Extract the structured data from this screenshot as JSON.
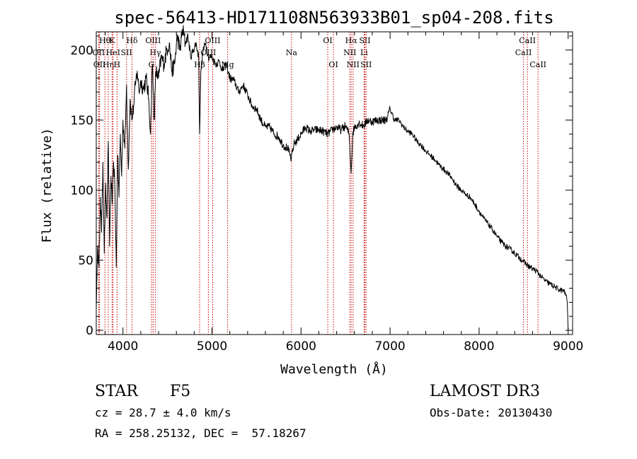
{
  "chart_data": {
    "type": "line",
    "title": "spec-56413-HD171108N563933B01_sp04-208.fits",
    "xlabel": "Wavelength (Å)",
    "ylabel": "Flux (relative)",
    "xlim": [
      3700,
      9050
    ],
    "ylim": [
      -3,
      213
    ],
    "x_ticks": [
      4000,
      5000,
      6000,
      7000,
      8000,
      9000
    ],
    "y_ticks": [
      0,
      50,
      100,
      150,
      200
    ],
    "grid": false,
    "series": [
      {
        "name": "flux",
        "x": [
          3700,
          3715,
          3730,
          3745,
          3760,
          3775,
          3790,
          3805,
          3820,
          3835,
          3850,
          3865,
          3880,
          3895,
          3910,
          3925,
          3940,
          3955,
          3970,
          3985,
          4000,
          4020,
          4040,
          4060,
          4080,
          4100,
          4120,
          4140,
          4160,
          4180,
          4200,
          4230,
          4260,
          4290,
          4310,
          4330,
          4350,
          4370,
          4400,
          4430,
          4460,
          4490,
          4520,
          4550,
          4580,
          4610,
          4640,
          4670,
          4700,
          4730,
          4760,
          4790,
          4820,
          4850,
          4861,
          4875,
          4900,
          4930,
          4960,
          5000,
          5040,
          5080,
          5120,
          5160,
          5200,
          5250,
          5300,
          5350,
          5400,
          5450,
          5500,
          5550,
          5600,
          5650,
          5700,
          5750,
          5800,
          5850,
          5890,
          5920,
          5950,
          6000,
          6050,
          6100,
          6150,
          6200,
          6250,
          6300,
          6350,
          6400,
          6450,
          6500,
          6540,
          6563,
          6580,
          6600,
          6650,
          6700,
          6750,
          6800,
          6850,
          6900,
          6950,
          6970,
          7000,
          7050,
          7100,
          7150,
          7200,
          7250,
          7300,
          7350,
          7400,
          7450,
          7500,
          7550,
          7600,
          7650,
          7700,
          7750,
          7800,
          7850,
          7900,
          7950,
          8000,
          8050,
          8100,
          8150,
          8200,
          8250,
          8300,
          8350,
          8400,
          8450,
          8500,
          8550,
          8600,
          8650,
          8700,
          8750,
          8800,
          8850,
          8900,
          8950,
          8980,
          8990,
          8995,
          9000
        ],
        "y": [
          15,
          60,
          45,
          95,
          70,
          120,
          55,
          105,
          80,
          135,
          60,
          110,
          90,
          120,
          100,
          45,
          125,
          95,
          140,
          110,
          150,
          130,
          175,
          115,
          165,
          150,
          160,
          175,
          185,
          170,
          178,
          172,
          180,
          165,
          140,
          190,
          150,
          185,
          180,
          195,
          190,
          200,
          205,
          185,
          190,
          210,
          200,
          215,
          205,
          210,
          195,
          200,
          205,
          195,
          140,
          185,
          200,
          205,
          195,
          195,
          190,
          192,
          185,
          190,
          180,
          178,
          170,
          175,
          168,
          160,
          158,
          150,
          145,
          145,
          140,
          138,
          132,
          130,
          122,
          133,
          135,
          140,
          145,
          142,
          143,
          143,
          142,
          140,
          143,
          145,
          143,
          146,
          140,
          112,
          140,
          145,
          148,
          146,
          150,
          149,
          150,
          150,
          150,
          152,
          158,
          150,
          150,
          145,
          142,
          140,
          135,
          132,
          128,
          125,
          122,
          118,
          115,
          112,
          108,
          103,
          100,
          97,
          95,
          90,
          85,
          80,
          76,
          72,
          67,
          63,
          60,
          58,
          55,
          52,
          49,
          46,
          44,
          42,
          38,
          35,
          33,
          31,
          29,
          28,
          25,
          20,
          10,
          0
        ]
      }
    ],
    "line_marks": [
      {
        "label": "Hθ",
        "x": 3797,
        "row": 0
      },
      {
        "label": "OII",
        "x": 3727,
        "row": 1
      },
      {
        "label": "OII",
        "x": 3737,
        "row": 2
      },
      {
        "label": "Hη",
        "x": 3835,
        "row": 2
      },
      {
        "label": "K",
        "x": 3878,
        "row": 0
      },
      {
        "label": "HeI",
        "x": 3889,
        "row": 1
      },
      {
        "label": "H",
        "x": 3933,
        "row": 2
      },
      {
        "label": "SII",
        "x": 4040,
        "row": 1
      },
      {
        "label": "Hδ",
        "x": 4101,
        "row": 0
      },
      {
        "label": "OIII",
        "x": 4339,
        "row": 0
      },
      {
        "label": "Hγ",
        "x": 4363,
        "row": 1
      },
      {
        "label": "G",
        "x": 4320,
        "row": 2
      },
      {
        "label": "OIII",
        "x": 5007,
        "row": 0
      },
      {
        "label": "OIII",
        "x": 4959,
        "row": 1
      },
      {
        "label": "Hβ",
        "x": 4861,
        "row": 2
      },
      {
        "label": "Mg",
        "x": 5175,
        "row": 2
      },
      {
        "label": "Na",
        "x": 5893,
        "row": 1
      },
      {
        "label": "OI",
        "x": 6300,
        "row": 0
      },
      {
        "label": "OI",
        "x": 6364,
        "row": 2
      },
      {
        "label": "Hα",
        "x": 6563,
        "row": 0
      },
      {
        "label": "NII",
        "x": 6548,
        "row": 1
      },
      {
        "label": "NII",
        "x": 6584,
        "row": 2
      },
      {
        "label": "SII",
        "x": 6717,
        "row": 0
      },
      {
        "label": "Li",
        "x": 6708,
        "row": 1
      },
      {
        "label": "SII",
        "x": 6731,
        "row": 2
      },
      {
        "label": "CaII",
        "x": 8542,
        "row": 0
      },
      {
        "label": "CaII",
        "x": 8498,
        "row": 1
      },
      {
        "label": "CaII",
        "x": 8662,
        "row": 2
      }
    ]
  },
  "info": {
    "object_type": "STAR",
    "subclass": "F5",
    "survey": "LAMOST DR3",
    "cz": "cz = 28.7 ± 4.0 km/s",
    "obs_date": "Obs-Date: 20130430",
    "coords": "RA = 258.25132, DEC =  57.18267"
  }
}
